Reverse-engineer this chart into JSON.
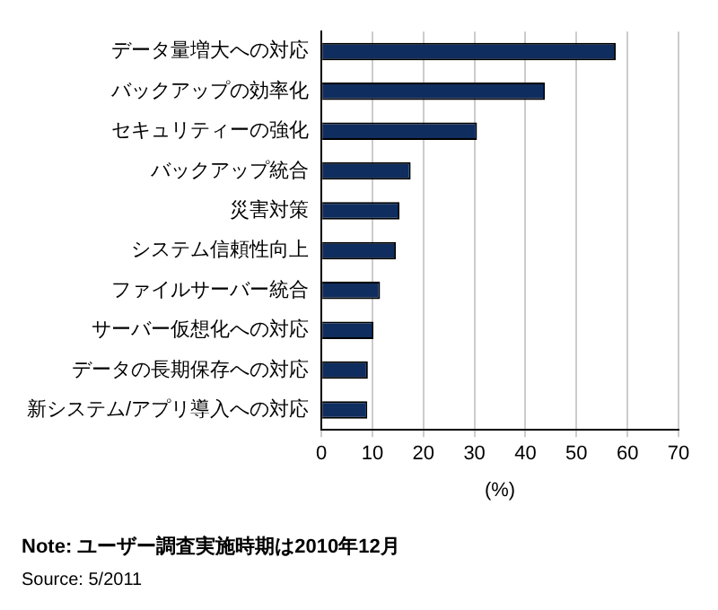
{
  "chart_data": {
    "type": "bar",
    "orientation": "horizontal",
    "xlabel": "(%)",
    "categories": [
      "データ量増大への対応",
      "バックアップの効率化",
      "セキュリティーの強化",
      "バックアップ統合",
      "災害対策",
      "システム信頼性向上",
      "ファイルサーバー統合",
      "サーバー仮想化への対応",
      "データの長期保存への対応",
      "新システム/アプリ導入への対応"
    ],
    "values": [
      57.7,
      43.8,
      30.5,
      17.5,
      15.3,
      14.6,
      11.5,
      10.2,
      9.1,
      9.0
    ],
    "color": "#0f2d5e",
    "xlim": [
      0,
      70
    ],
    "xticks": [
      0,
      10,
      20,
      30,
      40,
      50,
      60,
      70
    ],
    "grid": "x",
    "legend": false,
    "annotations": [
      "Note: ユーザー調査実施時期は2010年12月",
      "Source: 5/2011"
    ]
  }
}
